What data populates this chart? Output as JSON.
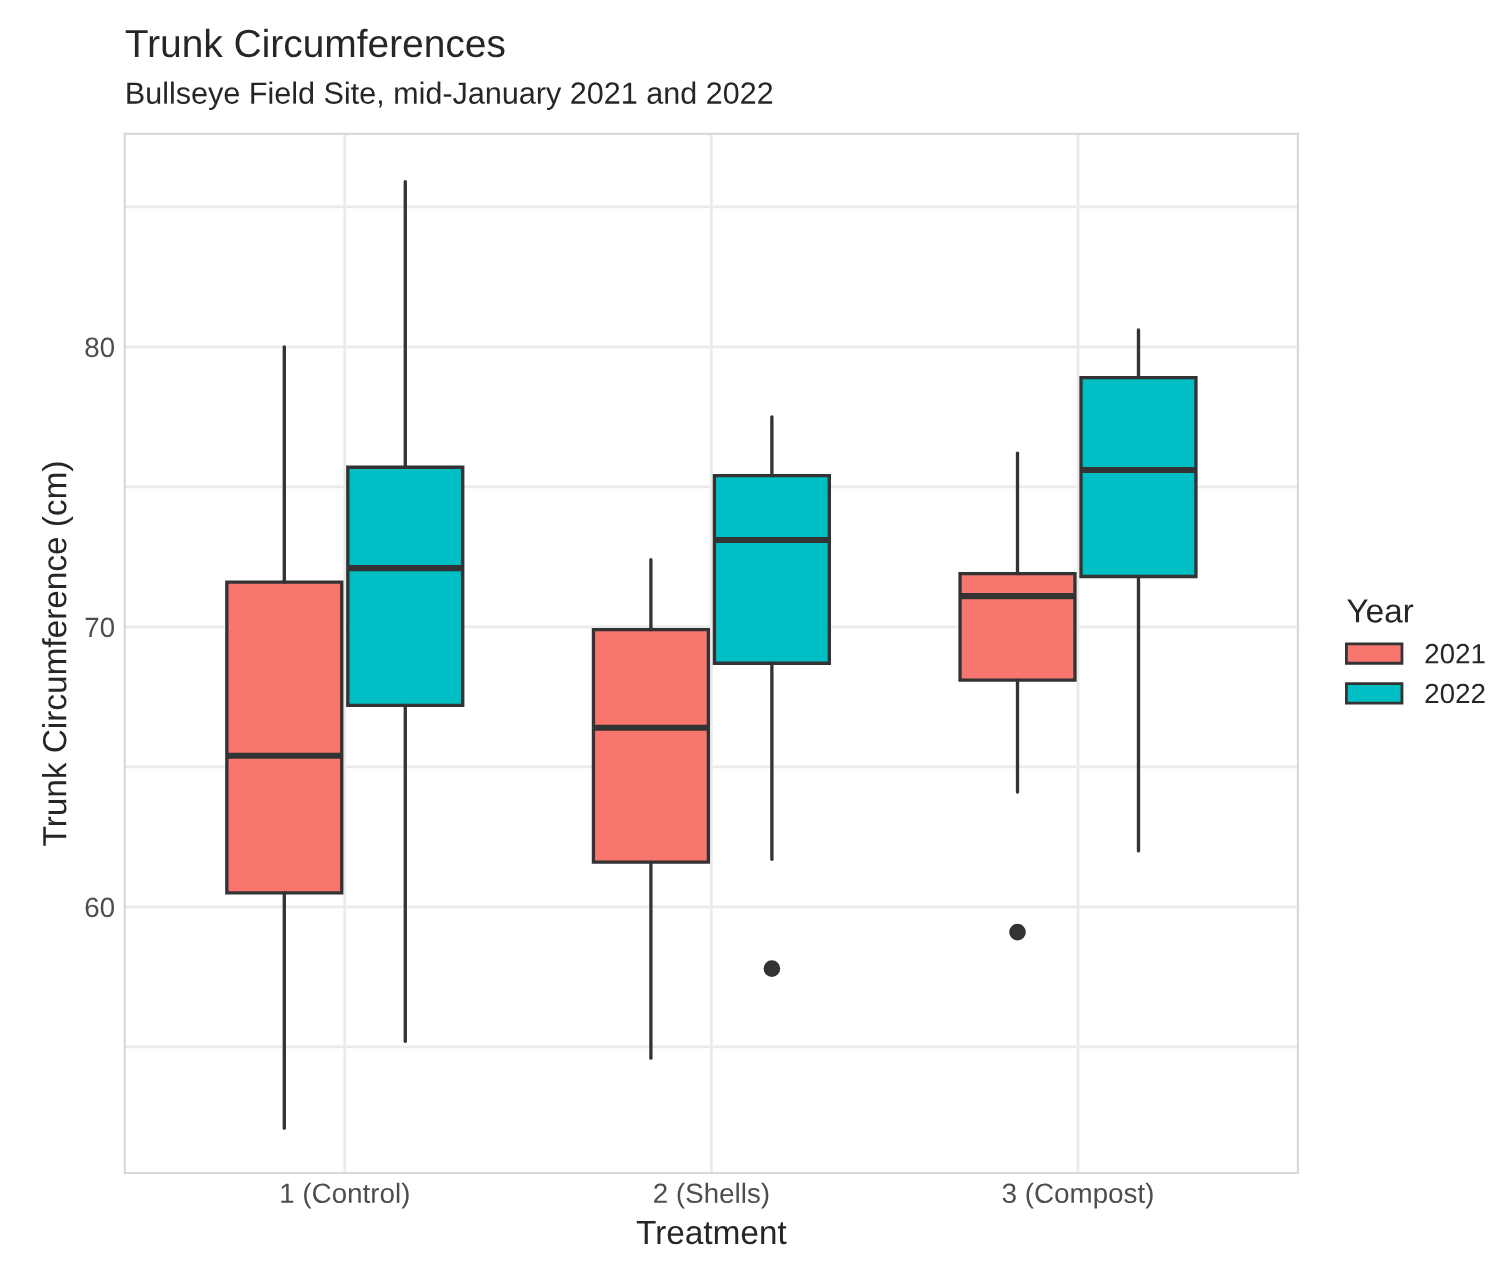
{
  "chart_data": {
    "type": "box",
    "title": "Trunk Circumferences",
    "subtitle": "Bullseye Field Site, mid-January 2021 and 2022",
    "xlabel": "Treatment",
    "ylabel": "Trunk Circumference (cm)",
    "legend_title": "Year",
    "categories": [
      "1 (Control)",
      "2 (Shells)",
      "3 (Compost)"
    ],
    "series": [
      {
        "name": "2021",
        "color": "#f8766d",
        "boxes": [
          {
            "low": 52.1,
            "q1": 60.5,
            "median": 65.4,
            "q3": 71.6,
            "high": 80.0
          },
          {
            "low": 54.6,
            "q1": 61.6,
            "median": 66.4,
            "q3": 69.9,
            "high": 72.4
          },
          {
            "low": 64.1,
            "q1": 68.1,
            "median": 71.1,
            "q3": 71.9,
            "high": 76.2,
            "outliers": [
              59.1
            ]
          }
        ]
      },
      {
        "name": "2022",
        "color": "#00bfc4",
        "boxes": [
          {
            "low": 55.2,
            "q1": 67.2,
            "median": 72.1,
            "q3": 75.7,
            "high": 85.9
          },
          {
            "low": 61.7,
            "q1": 68.7,
            "median": 73.1,
            "q3": 75.4,
            "high": 77.5,
            "outliers": [
              57.8
            ]
          },
          {
            "low": 62.0,
            "q1": 71.8,
            "median": 75.6,
            "q3": 78.9,
            "high": 80.6
          }
        ]
      }
    ],
    "ylim": [
      50.5,
      87.6
    ],
    "yticks": [
      {
        "value": 55,
        "label": null
      },
      60,
      {
        "value": 65,
        "label": null
      },
      70,
      {
        "value": 75,
        "label": null
      },
      80,
      {
        "value": 85,
        "label": null
      }
    ],
    "grid": true,
    "legend": "right"
  }
}
